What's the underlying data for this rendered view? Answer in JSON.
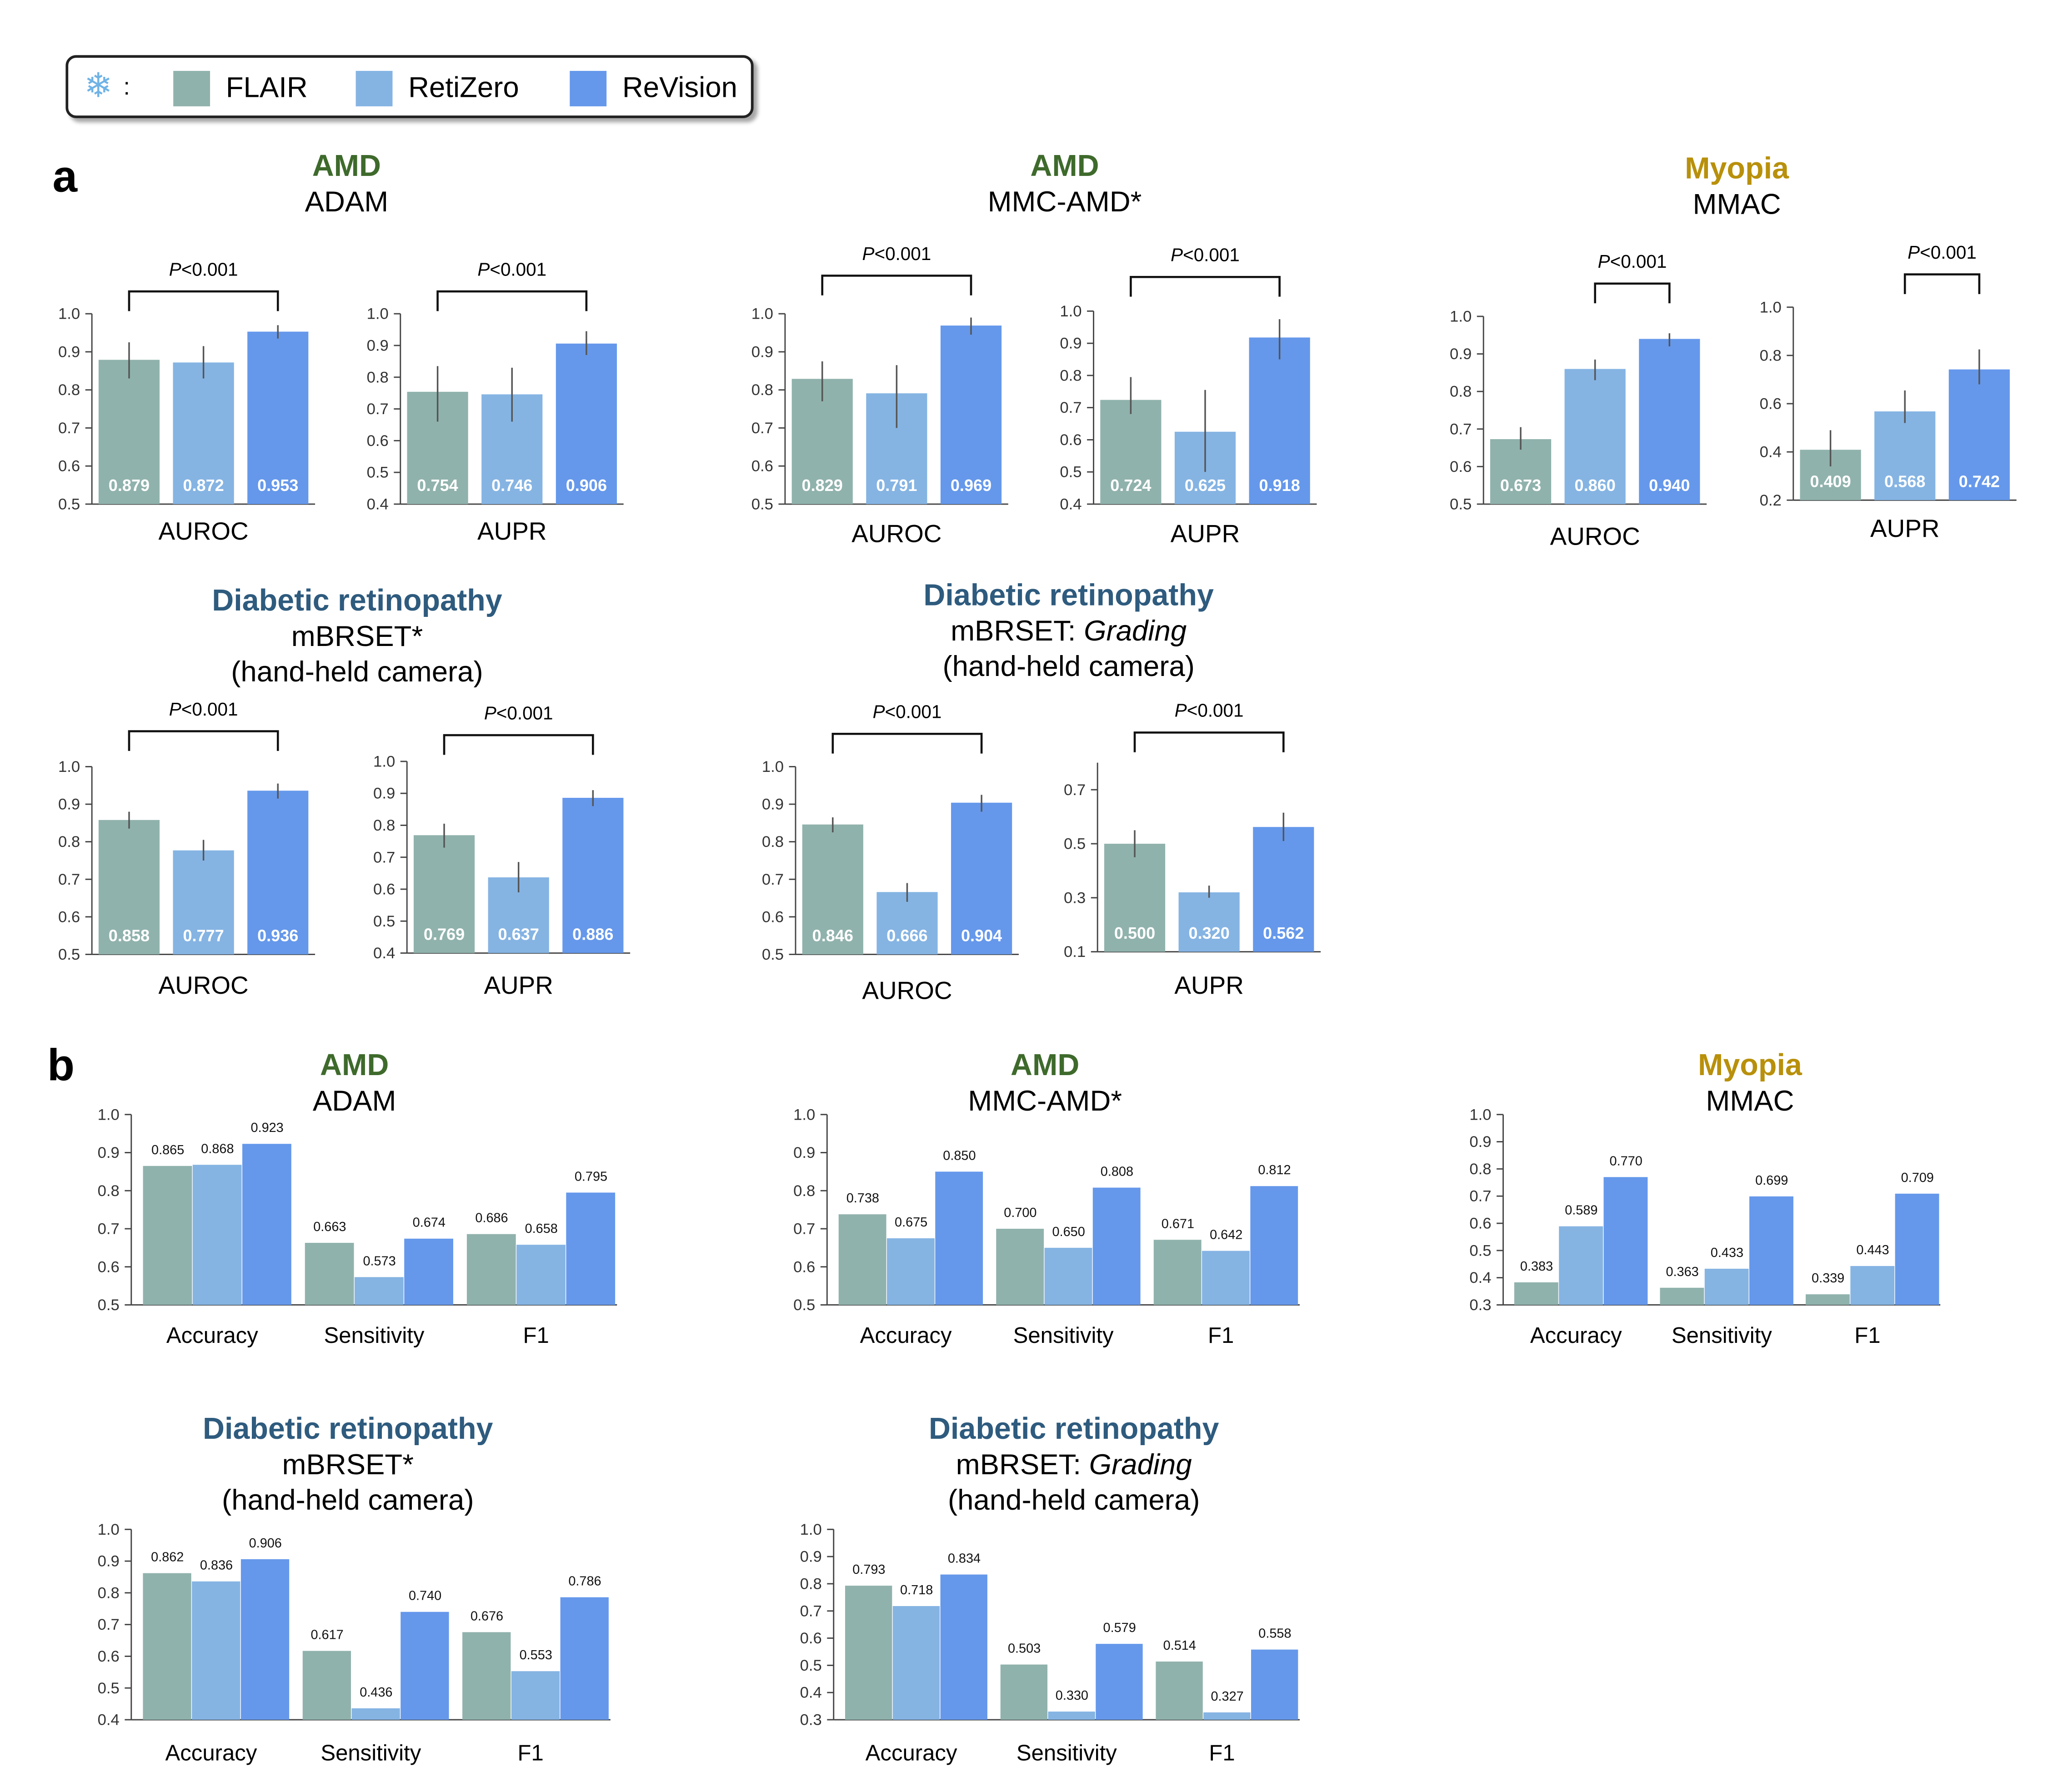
{
  "legend": {
    "frozen_icon": "snowflake-icon",
    "colon": ":",
    "items": [
      {
        "label": "FLAIR",
        "color": "#90b2ac"
      },
      {
        "label": "RetiZero",
        "color": "#85b4e3"
      },
      {
        "label": "ReVision",
        "color": "#6598eb"
      }
    ]
  },
  "panel_labels": {
    "a": "a",
    "b": "b"
  },
  "category_colors": {
    "AMD": "#3e6a2c",
    "Myopia": "#b8900b",
    "Diabetic retinopathy": "#2e5b7e"
  },
  "titles": {
    "a_adam": {
      "category": "AMD",
      "lines": [
        "ADAM"
      ]
    },
    "a_mmcamd": {
      "category": "AMD",
      "lines": [
        "MMC-AMD*"
      ]
    },
    "a_mmac": {
      "category": "Myopia",
      "lines": [
        "MMAC"
      ]
    },
    "a_mbrset": {
      "category": "Diabetic retinopathy",
      "lines": [
        "mBRSET*",
        "(hand-held camera)"
      ]
    },
    "a_grading": {
      "category": "Diabetic retinopathy",
      "line1_prefix": "mBRSET: ",
      "line1_italic": "Grading",
      "line2": "(hand-held camera)"
    },
    "b_adam": {
      "category": "AMD",
      "lines": [
        "ADAM"
      ]
    },
    "b_mmcamd": {
      "category": "AMD",
      "lines": [
        "MMC-AMD*"
      ]
    },
    "b_mmac": {
      "category": "Myopia",
      "lines": [
        "MMAC"
      ]
    },
    "b_mbrset": {
      "category": "Diabetic retinopathy",
      "lines": [
        "mBRSET*",
        "(hand-held camera)"
      ]
    },
    "b_grading": {
      "category": "Diabetic retinopathy",
      "line1_prefix": "mBRSET: ",
      "line1_italic": "Grading",
      "line2": "(hand-held camera)"
    }
  },
  "chart_data": [
    {
      "id": "a_adam_auroc",
      "type": "bar",
      "xlabel": "AUROC",
      "categories": [
        "FLAIR",
        "RetiZero",
        "ReVision"
      ],
      "values": [
        0.879,
        0.872,
        0.953
      ],
      "value_labels": [
        "0.879",
        "0.872",
        "0.953"
      ],
      "error_low": [
        0.83,
        0.83,
        0.935
      ],
      "error_high": [
        0.925,
        0.915,
        0.97
      ],
      "ylim": [
        0.5,
        1.0
      ],
      "yticks": [
        "0.5",
        "0.6",
        "0.7",
        "0.8",
        "0.9",
        "1.0"
      ],
      "significance": {
        "p_symbol": "P",
        "p_text": "<0.001",
        "from": 0,
        "to": 2
      }
    },
    {
      "id": "a_adam_aupr",
      "type": "bar",
      "xlabel": "AUPR",
      "categories": [
        "FLAIR",
        "RetiZero",
        "ReVision"
      ],
      "values": [
        0.754,
        0.746,
        0.906
      ],
      "value_labels": [
        "0.754",
        "0.746",
        "0.906"
      ],
      "error_low": [
        0.66,
        0.66,
        0.87
      ],
      "error_high": [
        0.835,
        0.83,
        0.945
      ],
      "ylim": [
        0.4,
        1.0
      ],
      "yticks": [
        "0.4",
        "0.5",
        "0.6",
        "0.7",
        "0.8",
        "0.9",
        "1.0"
      ],
      "significance": {
        "p_symbol": "P",
        "p_text": "<0.001",
        "from": 0,
        "to": 2
      }
    },
    {
      "id": "a_mmcamd_auroc",
      "type": "bar",
      "xlabel": "AUROC",
      "categories": [
        "FLAIR",
        "RetiZero",
        "ReVision"
      ],
      "values": [
        0.829,
        0.791,
        0.969
      ],
      "value_labels": [
        "0.829",
        "0.791",
        "0.969"
      ],
      "error_low": [
        0.77,
        0.7,
        0.945
      ],
      "error_high": [
        0.875,
        0.865,
        0.99
      ],
      "ylim": [
        0.5,
        1.0
      ],
      "yticks": [
        "0.5",
        "0.6",
        "0.7",
        "0.8",
        "0.9",
        "1.0"
      ],
      "significance": {
        "p_symbol": "P",
        "p_text": "<0.001",
        "from": 0,
        "to": 2
      }
    },
    {
      "id": "a_mmcamd_aupr",
      "type": "bar",
      "xlabel": "AUPR",
      "categories": [
        "FLAIR",
        "RetiZero",
        "ReVision"
      ],
      "values": [
        0.724,
        0.625,
        0.918
      ],
      "value_labels": [
        "0.724",
        "0.625",
        "0.918"
      ],
      "error_low": [
        0.68,
        0.5,
        0.85
      ],
      "error_high": [
        0.795,
        0.755,
        0.975
      ],
      "ylim": [
        0.4,
        1.0
      ],
      "yticks": [
        "0.4",
        "0.5",
        "0.6",
        "0.7",
        "0.8",
        "0.9",
        "1.0"
      ],
      "significance": {
        "p_symbol": "P",
        "p_text": "<0.001",
        "from": 0,
        "to": 2
      }
    },
    {
      "id": "a_mmac_auroc",
      "type": "bar",
      "xlabel": "AUROC",
      "categories": [
        "FLAIR",
        "RetiZero",
        "ReVision"
      ],
      "values": [
        0.673,
        0.86,
        0.94
      ],
      "value_labels": [
        "0.673",
        "0.860",
        "0.940"
      ],
      "error_low": [
        0.645,
        0.83,
        0.92
      ],
      "error_high": [
        0.705,
        0.885,
        0.955
      ],
      "ylim": [
        0.5,
        1.0
      ],
      "yticks": [
        "0.5",
        "0.6",
        "0.7",
        "0.8",
        "0.9",
        "1.0"
      ],
      "significance": {
        "p_symbol": "P",
        "p_text": "<0.001",
        "from": 1,
        "to": 2
      }
    },
    {
      "id": "a_mmac_aupr",
      "type": "bar",
      "xlabel": "AUPR",
      "categories": [
        "FLAIR",
        "RetiZero",
        "ReVision"
      ],
      "values": [
        0.409,
        0.568,
        0.742
      ],
      "value_labels": [
        "0.409",
        "0.568",
        "0.742"
      ],
      "error_low": [
        0.34,
        0.52,
        0.68
      ],
      "error_high": [
        0.49,
        0.655,
        0.825
      ],
      "ylim": [
        0.2,
        1.0
      ],
      "yticks": [
        "0.2",
        "0.4",
        "0.6",
        "0.8",
        "1.0"
      ],
      "significance": {
        "p_symbol": "P",
        "p_text": "<0.001",
        "from": 1,
        "to": 2
      }
    },
    {
      "id": "a_mbrset_auroc",
      "type": "bar",
      "xlabel": "AUROC",
      "categories": [
        "FLAIR",
        "RetiZero",
        "ReVision"
      ],
      "values": [
        0.858,
        0.777,
        0.936
      ],
      "value_labels": [
        "0.858",
        "0.777",
        "0.936"
      ],
      "error_low": [
        0.835,
        0.75,
        0.915
      ],
      "error_high": [
        0.88,
        0.805,
        0.955
      ],
      "ylim": [
        0.5,
        1.0
      ],
      "yticks": [
        "0.5",
        "0.6",
        "0.7",
        "0.8",
        "0.9",
        "1.0"
      ],
      "significance": {
        "p_symbol": "P",
        "p_text": "<0.001",
        "from": 0,
        "to": 2
      }
    },
    {
      "id": "a_mbrset_aupr",
      "type": "bar",
      "xlabel": "AUPR",
      "categories": [
        "FLAIR",
        "RetiZero",
        "ReVision"
      ],
      "values": [
        0.769,
        0.637,
        0.886
      ],
      "value_labels": [
        "0.769",
        "0.637",
        "0.886"
      ],
      "error_low": [
        0.73,
        0.59,
        0.86
      ],
      "error_high": [
        0.805,
        0.685,
        0.91
      ],
      "ylim": [
        0.4,
        1.0
      ],
      "yticks": [
        "0.4",
        "0.5",
        "0.6",
        "0.7",
        "0.8",
        "0.9",
        "1.0"
      ],
      "significance": {
        "p_symbol": "P",
        "p_text": "<0.001",
        "from": 0,
        "to": 2
      }
    },
    {
      "id": "a_grading_auroc",
      "type": "bar",
      "xlabel": "AUROC",
      "categories": [
        "FLAIR",
        "RetiZero",
        "ReVision"
      ],
      "values": [
        0.846,
        0.666,
        0.904
      ],
      "value_labels": [
        "0.846",
        "0.666",
        "0.904"
      ],
      "error_low": [
        0.825,
        0.64,
        0.88
      ],
      "error_high": [
        0.865,
        0.69,
        0.925
      ],
      "ylim": [
        0.5,
        1.0
      ],
      "yticks": [
        "0.5",
        "0.6",
        "0.7",
        "0.8",
        "0.9",
        "1.0"
      ],
      "significance": {
        "p_symbol": "P",
        "p_text": "<0.001",
        "from": 0,
        "to": 2
      }
    },
    {
      "id": "a_grading_aupr",
      "type": "bar",
      "xlabel": "AUPR",
      "categories": [
        "FLAIR",
        "RetiZero",
        "ReVision"
      ],
      "values": [
        0.5,
        0.32,
        0.562
      ],
      "value_labels": [
        "0.500",
        "0.320",
        "0.562"
      ],
      "error_low": [
        0.45,
        0.3,
        0.51
      ],
      "error_high": [
        0.55,
        0.345,
        0.615
      ],
      "ylim": [
        0.1,
        0.8
      ],
      "yticks": [
        "0.1",
        "0.3",
        "0.5",
        "0.7"
      ],
      "significance": {
        "p_symbol": "P",
        "p_text": "<0.001",
        "from": 0,
        "to": 2
      }
    },
    {
      "id": "b_adam",
      "type": "bar",
      "categories": [
        "Accuracy",
        "Sensitivity",
        "F1"
      ],
      "series": [
        {
          "name": "FLAIR",
          "values": [
            0.865,
            0.663,
            0.686
          ],
          "labels": [
            "0.865",
            "0.663",
            "0.686"
          ]
        },
        {
          "name": "RetiZero",
          "values": [
            0.868,
            0.573,
            0.658
          ],
          "labels": [
            "0.868",
            "0.573",
            "0.658"
          ]
        },
        {
          "name": "ReVision",
          "values": [
            0.923,
            0.674,
            0.795
          ],
          "labels": [
            "0.923",
            "0.674",
            "0.795"
          ]
        }
      ],
      "ylim": [
        0.5,
        1.0
      ],
      "yticks": [
        "0.5",
        "0.6",
        "0.7",
        "0.8",
        "0.9",
        "1.0"
      ]
    },
    {
      "id": "b_mmcamd",
      "type": "bar",
      "categories": [
        "Accuracy",
        "Sensitivity",
        "F1"
      ],
      "series": [
        {
          "name": "FLAIR",
          "values": [
            0.738,
            0.7,
            0.671
          ],
          "labels": [
            "0.738",
            "0.700",
            "0.671"
          ]
        },
        {
          "name": "RetiZero",
          "values": [
            0.675,
            0.65,
            0.642
          ],
          "labels": [
            "0.675",
            "0.650",
            "0.642"
          ]
        },
        {
          "name": "ReVision",
          "values": [
            0.85,
            0.808,
            0.812
          ],
          "labels": [
            "0.850",
            "0.808",
            "0.812"
          ]
        }
      ],
      "ylim": [
        0.5,
        1.0
      ],
      "yticks": [
        "0.5",
        "0.6",
        "0.7",
        "0.8",
        "0.9",
        "1.0"
      ]
    },
    {
      "id": "b_mmac",
      "type": "bar",
      "categories": [
        "Accuracy",
        "Sensitivity",
        "F1"
      ],
      "series": [
        {
          "name": "FLAIR",
          "values": [
            0.383,
            0.363,
            0.339
          ],
          "labels": [
            "0.383",
            "0.363",
            "0.339"
          ]
        },
        {
          "name": "RetiZero",
          "values": [
            0.589,
            0.433,
            0.443
          ],
          "labels": [
            "0.589",
            "0.433",
            "0.443"
          ]
        },
        {
          "name": "ReVision",
          "values": [
            0.77,
            0.699,
            0.709
          ],
          "labels": [
            "0.770",
            "0.699",
            "0.709"
          ]
        }
      ],
      "ylim": [
        0.3,
        1.0
      ],
      "yticks": [
        "0.3",
        "0.4",
        "0.5",
        "0.6",
        "0.7",
        "0.8",
        "0.9",
        "1.0"
      ]
    },
    {
      "id": "b_mbrset",
      "type": "bar",
      "categories": [
        "Accuracy",
        "Sensitivity",
        "F1"
      ],
      "series": [
        {
          "name": "FLAIR",
          "values": [
            0.862,
            0.617,
            0.676
          ],
          "labels": [
            "0.862",
            "0.617",
            "0.676"
          ]
        },
        {
          "name": "RetiZero",
          "values": [
            0.836,
            0.436,
            0.553
          ],
          "labels": [
            "0.836",
            "0.436",
            "0.553"
          ]
        },
        {
          "name": "ReVision",
          "values": [
            0.906,
            0.74,
            0.786
          ],
          "labels": [
            "0.906",
            "0.740",
            "0.786"
          ]
        }
      ],
      "ylim": [
        0.4,
        1.0
      ],
      "yticks": [
        "0.4",
        "0.5",
        "0.6",
        "0.7",
        "0.8",
        "0.9",
        "1.0"
      ]
    },
    {
      "id": "b_grading",
      "type": "bar",
      "categories": [
        "Accuracy",
        "Sensitivity",
        "F1"
      ],
      "series": [
        {
          "name": "FLAIR",
          "values": [
            0.793,
            0.503,
            0.514
          ],
          "labels": [
            "0.793",
            "0.503",
            "0.514"
          ]
        },
        {
          "name": "RetiZero",
          "values": [
            0.718,
            0.33,
            0.327
          ],
          "labels": [
            "0.718",
            "0.330",
            "0.327"
          ]
        },
        {
          "name": "ReVision",
          "values": [
            0.834,
            0.579,
            0.558
          ],
          "labels": [
            "0.834",
            "0.579",
            "0.558"
          ]
        }
      ],
      "ylim": [
        0.3,
        1.0
      ],
      "yticks": [
        "0.3",
        "0.4",
        "0.5",
        "0.6",
        "0.7",
        "0.8",
        "0.9",
        "1.0"
      ]
    }
  ]
}
